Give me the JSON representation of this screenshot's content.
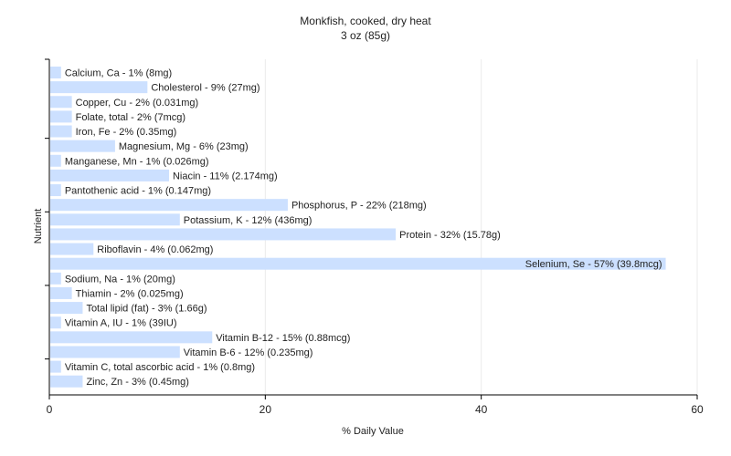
{
  "chart_data": {
    "type": "bar",
    "orientation": "horizontal",
    "title": "Monkfish, cooked, dry heat",
    "subtitle": "3 oz (85g)",
    "xlabel": "% Daily Value",
    "ylabel": "Nutrient",
    "xlim": [
      0,
      60
    ],
    "xticks": [
      0,
      20,
      40,
      60
    ],
    "grid": "vertical",
    "bar_color": "#cce0ff",
    "categories": [
      "Calcium, Ca",
      "Cholesterol",
      "Copper, Cu",
      "Folate, total",
      "Iron, Fe",
      "Magnesium, Mg",
      "Manganese, Mn",
      "Niacin",
      "Pantothenic acid",
      "Phosphorus, P",
      "Potassium, K",
      "Protein",
      "Riboflavin",
      "Selenium, Se",
      "Sodium, Na",
      "Thiamin",
      "Total lipid (fat)",
      "Vitamin A, IU",
      "Vitamin B-12",
      "Vitamin B-6",
      "Vitamin C, total ascorbic acid",
      "Zinc, Zn"
    ],
    "values": [
      1,
      9,
      2,
      2,
      2,
      6,
      1,
      11,
      1,
      22,
      12,
      32,
      4,
      57,
      1,
      2,
      3,
      1,
      15,
      12,
      1,
      3
    ],
    "labels": [
      "Calcium, Ca - 1% (8mg)",
      "Cholesterol - 9% (27mg)",
      "Copper, Cu - 2% (0.031mg)",
      "Folate, total - 2% (7mcg)",
      "Iron, Fe - 2% (0.35mg)",
      "Magnesium, Mg - 6% (23mg)",
      "Manganese, Mn - 1% (0.026mg)",
      "Niacin - 11% (2.174mg)",
      "Pantothenic acid - 1% (0.147mg)",
      "Phosphorus, P - 22% (218mg)",
      "Potassium, K - 12% (436mg)",
      "Protein - 32% (15.78g)",
      "Riboflavin - 4% (0.062mg)",
      "Selenium, Se - 57% (39.8mcg)",
      "Sodium, Na - 1% (20mg)",
      "Thiamin - 2% (0.025mg)",
      "Total lipid (fat) - 3% (1.66g)",
      "Vitamin A, IU - 1% (39IU)",
      "Vitamin B-12 - 15% (0.88mcg)",
      "Vitamin B-6 - 12% (0.235mg)",
      "Vitamin C, total ascorbic acid - 1% (0.8mg)",
      "Zinc, Zn - 3% (0.45mg)"
    ]
  }
}
